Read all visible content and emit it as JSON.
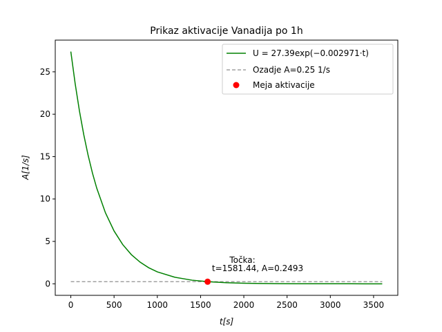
{
  "chart_data": {
    "type": "line",
    "title": "Prikaz aktivacije Vanadija po 1h",
    "xlabel": "t[s]",
    "ylabel": "A[1/s]",
    "xlim": [
      -180,
      3780
    ],
    "ylim": [
      -1.36,
      28.74
    ],
    "xticks": [
      0,
      500,
      1000,
      1500,
      2000,
      2500,
      3000,
      3500
    ],
    "yticks": [
      0,
      5,
      10,
      15,
      20,
      25
    ],
    "grid": false,
    "legend_position": "top-right",
    "series": [
      {
        "name": "U = 27.39exp(−0.002971·t)",
        "kind": "curve",
        "color": "#008000",
        "style": "solid",
        "x": [
          0,
          50,
          100,
          150,
          200,
          250,
          300,
          400,
          500,
          600,
          700,
          800,
          900,
          1000,
          1200,
          1400,
          1600,
          1800,
          2000,
          2200,
          2400,
          2600,
          2800,
          3000,
          3200,
          3400,
          3600
        ],
        "y": [
          27.39,
          23.62,
          20.37,
          17.57,
          15.15,
          13.06,
          11.27,
          8.38,
          6.23,
          4.63,
          3.44,
          2.56,
          1.9,
          1.41,
          0.78,
          0.43,
          0.24,
          0.13,
          0.07,
          0.04,
          0.02,
          0.01,
          0.007,
          0.004,
          0.002,
          0.001,
          0.0006
        ]
      },
      {
        "name": "Ozadje A=0.25 1/s",
        "kind": "hline",
        "color": "#a0a0a0",
        "style": "dashed",
        "x": [
          0,
          3600
        ],
        "y": [
          0.25,
          0.25
        ]
      },
      {
        "name": "Meja aktivacije",
        "kind": "point",
        "color": "#ff0000",
        "x": [
          1581.44
        ],
        "y": [
          0.2493
        ]
      }
    ],
    "annotation": {
      "line1": "Točka:",
      "line2": "t=1581.44, A=0.2493"
    }
  }
}
